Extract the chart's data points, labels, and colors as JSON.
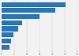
{
  "values": [
    25.3,
    21.4,
    14.9,
    8.1,
    6.5,
    4.7,
    3.9,
    3.2
  ],
  "bar_color": "#2e75b6",
  "background_color": "#f2f2f2",
  "plot_bg_color": "#ffffff",
  "xlim": [
    0,
    30
  ],
  "bar_height": 0.8,
  "figsize": [
    1.0,
    0.71
  ],
  "dpi": 100
}
